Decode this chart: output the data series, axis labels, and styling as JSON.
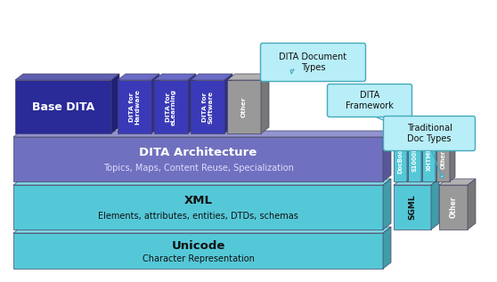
{
  "bg_color": "#ffffff",
  "unicode_color": "#55c8d8",
  "xml_color": "#55c8d8",
  "dita_arch_color": "#7070c0",
  "base_dita_color": "#2a2a99",
  "book_dita_color": "#3a3ab8",
  "book_dita_other": "#999999",
  "trad_book_color": "#55c8d8",
  "other_color": "#999999",
  "sgml_color": "#55c8d8",
  "callout_color": "#b8eef8",
  "callout_border": "#44aabb",
  "text_dark": "#111111",
  "text_white": "#ffffff",
  "text_light_purple": "#ddddff",
  "unicode_title": "Unicode",
  "unicode_subtitle": "Character Representation",
  "xml_title": "XML",
  "xml_subtitle": "Elements, attributes, entities, DTDs, schemas",
  "dita_arch_title": "DITA Architecture",
  "dita_arch_subtitle": "Topics, Maps, Content Reuse, Specialization",
  "base_dita_label": "Base DITA",
  "dita_books": [
    "DITA for\nHardware",
    "DITA for\neLearning",
    "DITA for\nSoftware",
    "Other"
  ],
  "trad_books": [
    "DocBook",
    "S1000D",
    "XHTML",
    "Other"
  ],
  "trad_standalone": [
    "SGML",
    "Other"
  ],
  "callout1_text": "DITA Document\nTypes",
  "callout2_text": "DITA\nFramework",
  "callout3_text": "Traditional\nDoc Types"
}
